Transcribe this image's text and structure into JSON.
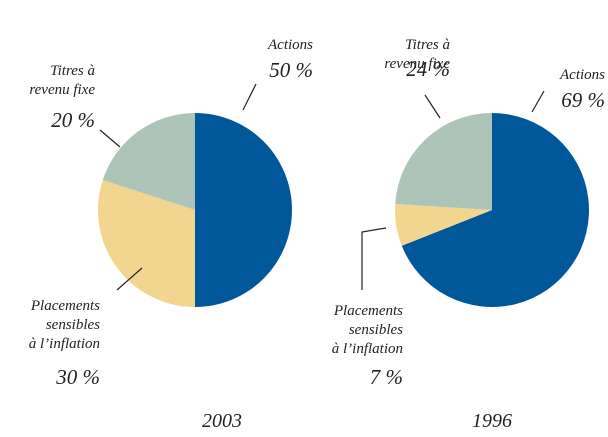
{
  "chart_data": [
    {
      "type": "pie",
      "title": "2003",
      "categories": [
        "Actions",
        "Placements sensibles à l’inflation",
        "Titres à revenu fixe"
      ],
      "values": [
        50,
        30,
        20
      ],
      "value_labels": [
        "50 %",
        "30 %",
        "20 %"
      ],
      "colors": [
        "#00589a",
        "#f2d68f",
        "#adc4b8"
      ]
    },
    {
      "type": "pie",
      "title": "1996",
      "categories": [
        "Actions",
        "Placements sensibles à l’inflation",
        "Titres à revenu fixe"
      ],
      "values": [
        69,
        7,
        24
      ],
      "value_labels": [
        "69 %",
        "7 %",
        "24 %"
      ],
      "colors": [
        "#00589a",
        "#f2d68f",
        "#adc4b8"
      ]
    }
  ]
}
